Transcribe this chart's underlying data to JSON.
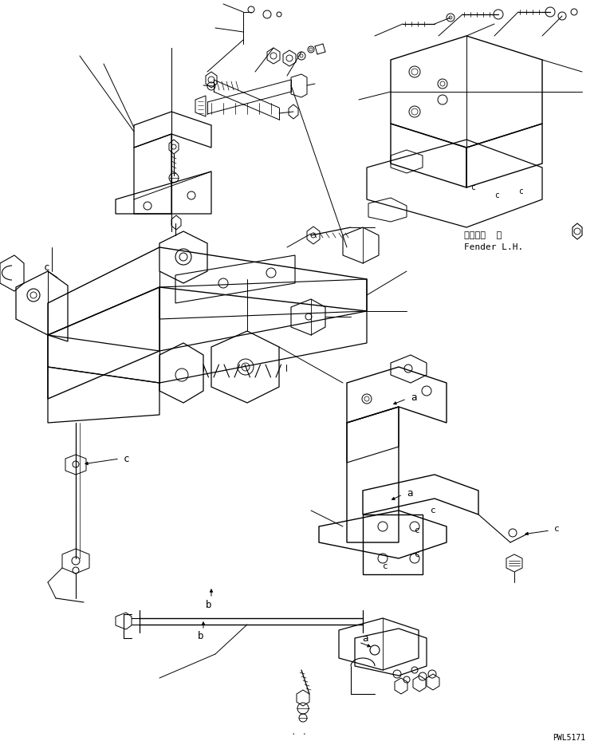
{
  "background_color": "#ffffff",
  "fig_width": 7.6,
  "fig_height": 9.39,
  "dpi": 100,
  "label_fender_jp": "フェンダ  左",
  "label_fender_en": "Fender L.H.",
  "part_number": "PWL5171",
  "text_color": "#000000",
  "line_color": "#000000"
}
